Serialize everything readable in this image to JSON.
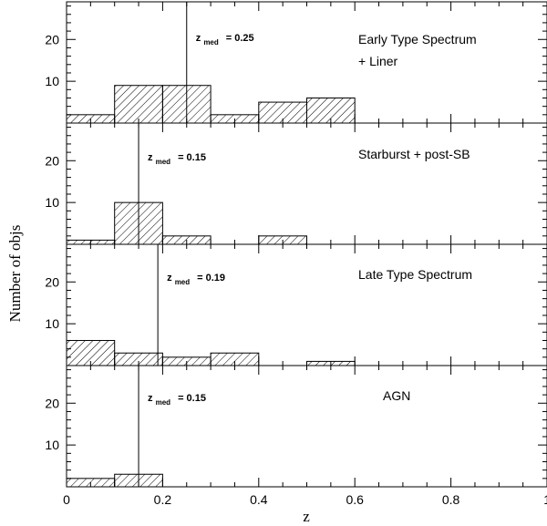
{
  "chart_data": {
    "type": "bar",
    "xlabel": "z",
    "ylabel": "Number of objs",
    "xlim": [
      0,
      1
    ],
    "ylim": [
      0,
      29
    ],
    "x_ticks": [
      "0",
      "0.2",
      "0.4",
      "0.6",
      "0.8",
      "1"
    ],
    "y_ticks": [
      "10",
      "20"
    ],
    "bin_edges": [
      0,
      0.1,
      0.2,
      0.3,
      0.4,
      0.5,
      0.6
    ],
    "hatch": "diagonal",
    "panels": [
      {
        "label_lines": [
          "Early Type Spectrum",
          "+ Liner"
        ],
        "counts": [
          2,
          9,
          9,
          2,
          5,
          6
        ],
        "median_prefix": "z",
        "median_subscript": "med",
        "median_text": "= 0.25",
        "median_value": 0.25
      },
      {
        "label_lines": [
          "Starburst + post-SB"
        ],
        "counts": [
          1,
          10,
          2,
          0,
          2,
          0
        ],
        "median_prefix": "z",
        "median_subscript": "med",
        "median_text": "= 0.15",
        "median_value": 0.15
      },
      {
        "label_lines": [
          "Late Type Spectrum"
        ],
        "counts": [
          6,
          3,
          2,
          3,
          0,
          1
        ],
        "median_prefix": "z",
        "median_subscript": "med",
        "median_text": "= 0.19",
        "median_value": 0.19
      },
      {
        "label_lines": [
          "AGN"
        ],
        "counts": [
          2,
          3,
          0,
          0,
          0,
          0
        ],
        "median_prefix": "z",
        "median_subscript": "med",
        "median_text": "= 0.15",
        "median_value": 0.15
      }
    ]
  }
}
